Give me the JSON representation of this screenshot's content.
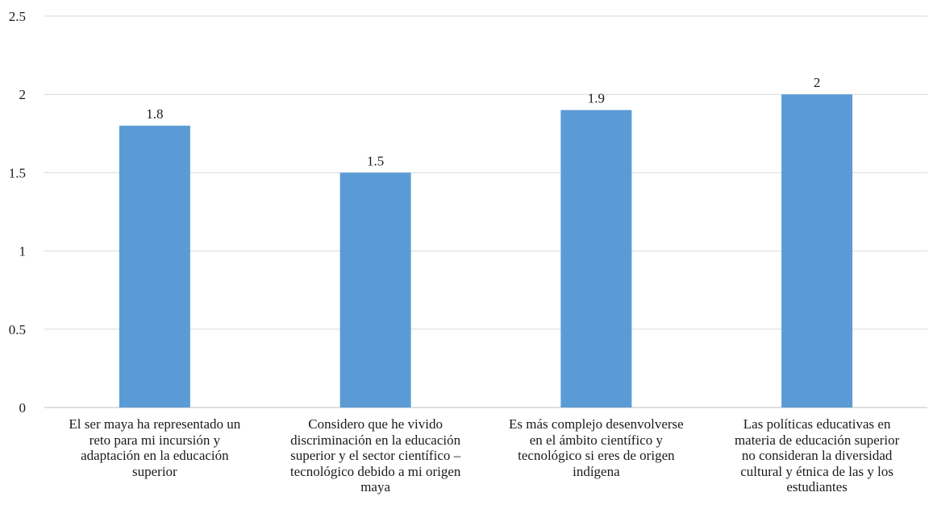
{
  "chart_data": {
    "type": "bar",
    "title": "",
    "xlabel": "",
    "ylabel": "",
    "ylim": [
      0,
      2.5
    ],
    "yticks": [
      "0",
      "0.5",
      "1",
      "1.5",
      "2",
      "2.5"
    ],
    "grid": true,
    "bar_color": "#5b9bd5",
    "categories": [
      "El ser maya ha representado un\nreto para mi incursión y\nadaptación en la educación\nsuperior",
      "Considero que he vivido\ndiscriminación  en la educación\nsuperior y el sector científico –\ntecnológico debido a mi origen\nmaya",
      "Es más complejo desenvolverse\nen el ámbito científico y\ntecnológico si eres de origen\nindígena",
      "Las políticas educativas en\nmateria de educación superior\nno consideran la diversidad\ncultural y étnica de las y los\nestudiantes"
    ],
    "values": [
      1.8,
      1.5,
      1.9,
      2
    ],
    "data_labels": [
      "1.8",
      "1.5",
      "1.9",
      "2"
    ]
  }
}
